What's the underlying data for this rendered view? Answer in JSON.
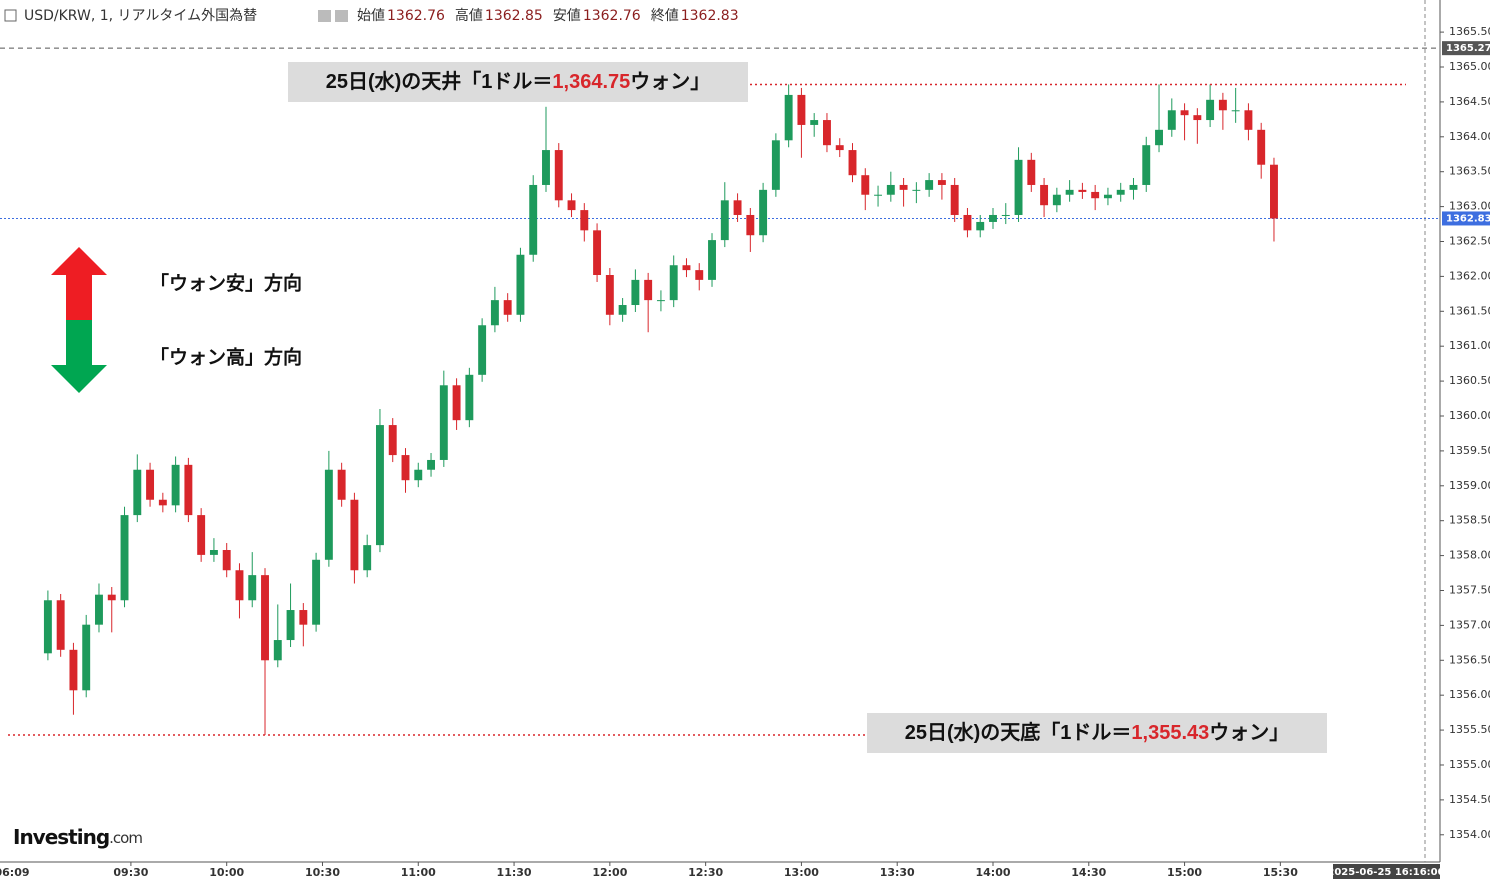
{
  "header": {
    "symbol": "USD/KRW, 1, リアルタイム外国為替",
    "items": [
      {
        "label": "始値",
        "value": 1362.76
      },
      {
        "label": "高値",
        "value": 1362.85
      },
      {
        "label": "安値",
        "value": 1362.76
      },
      {
        "label": "終値",
        "value": 1362.83
      }
    ]
  },
  "side_notes": [
    "「ウォン安」方向",
    "「ウォン高」方向"
  ],
  "logo": {
    "main": "Investing",
    "suffix": ".com"
  },
  "chart_data": {
    "type": "candlestick",
    "up_color": "#1e9a5c",
    "down_color": "#d8262b",
    "x": [
      "09:04",
      "09:08",
      "09:12",
      "09:16",
      "09:20",
      "09:24",
      "09:28",
      "09:32",
      "09:36",
      "09:40",
      "09:44",
      "09:48",
      "09:52",
      "09:56",
      "10:00",
      "10:04",
      "10:08",
      "10:12",
      "10:16",
      "10:20",
      "10:24",
      "10:28",
      "10:32",
      "10:36",
      "10:40",
      "10:44",
      "10:48",
      "10:52",
      "10:56",
      "11:00",
      "11:04",
      "11:08",
      "11:12",
      "11:16",
      "11:20",
      "11:24",
      "11:28",
      "11:32",
      "11:36",
      "11:40",
      "11:44",
      "11:48",
      "11:52",
      "11:56",
      "12:00",
      "12:04",
      "12:08",
      "12:12",
      "12:16",
      "12:20",
      "12:24",
      "12:28",
      "12:32",
      "12:36",
      "12:40",
      "12:44",
      "12:48",
      "12:52",
      "12:56",
      "13:00",
      "13:04",
      "13:08",
      "13:12",
      "13:16",
      "13:20",
      "13:24",
      "13:28",
      "13:32",
      "13:36",
      "13:40",
      "13:44",
      "13:48",
      "13:52",
      "13:56",
      "14:00",
      "14:04",
      "14:08",
      "14:12",
      "14:16",
      "14:20",
      "14:24",
      "14:28",
      "14:32",
      "14:36",
      "14:40",
      "14:44",
      "14:48",
      "14:52",
      "14:56",
      "15:00",
      "15:04",
      "15:08",
      "15:12",
      "15:16",
      "15:20",
      "15:24",
      "15:28"
    ],
    "open": [
      1356.6,
      1357.36,
      1356.65,
      1356.07,
      1357.01,
      1357.44,
      1357.36,
      1358.58,
      1359.23,
      1358.8,
      1358.72,
      1359.3,
      1358.58,
      1358.01,
      1358.08,
      1357.79,
      1357.36,
      1357.72,
      1356.5,
      1356.79,
      1357.22,
      1357.01,
      1357.94,
      1359.23,
      1358.8,
      1357.79,
      1358.15,
      1359.87,
      1359.44,
      1359.08,
      1359.23,
      1359.37,
      1360.44,
      1359.94,
      1360.59,
      1361.3,
      1361.66,
      1361.45,
      1362.31,
      1363.31,
      1363.81,
      1363.09,
      1362.95,
      1362.66,
      1362.02,
      1361.45,
      1361.59,
      1361.95,
      1361.66,
      1361.66,
      1362.16,
      1362.09,
      1361.95,
      1362.52,
      1363.09,
      1362.88,
      1362.59,
      1363.24,
      1363.95,
      1364.6,
      1364.17,
      1364.24,
      1363.88,
      1363.81,
      1363.45,
      1363.17,
      1363.17,
      1363.31,
      1363.24,
      1363.24,
      1363.38,
      1363.31,
      1362.88,
      1362.66,
      1362.78,
      1362.88,
      1362.88,
      1363.67,
      1363.31,
      1363.02,
      1363.17,
      1363.24,
      1363.21,
      1363.12,
      1363.17,
      1363.24,
      1363.31,
      1363.88,
      1364.1,
      1364.38,
      1364.31,
      1364.24,
      1364.53,
      1364.38,
      1364.38,
      1364.1,
      1363.6
    ],
    "high": [
      1357.5,
      1357.45,
      1356.75,
      1357.15,
      1357.6,
      1357.55,
      1358.7,
      1359.45,
      1359.33,
      1358.9,
      1359.42,
      1359.4,
      1358.68,
      1358.25,
      1358.18,
      1357.89,
      1358.05,
      1357.82,
      1357.3,
      1357.6,
      1357.32,
      1358.04,
      1359.5,
      1359.33,
      1358.9,
      1358.3,
      1360.1,
      1359.97,
      1359.54,
      1359.33,
      1359.47,
      1360.65,
      1360.54,
      1360.69,
      1361.4,
      1361.85,
      1361.76,
      1362.41,
      1363.45,
      1364.43,
      1363.91,
      1363.19,
      1363.05,
      1362.76,
      1362.12,
      1361.69,
      1362.1,
      1362.05,
      1361.8,
      1362.3,
      1362.26,
      1362.19,
      1362.62,
      1363.35,
      1363.19,
      1362.98,
      1363.34,
      1364.05,
      1364.75,
      1364.7,
      1364.34,
      1364.34,
      1363.98,
      1363.91,
      1363.55,
      1363.3,
      1363.5,
      1363.41,
      1363.35,
      1363.48,
      1363.48,
      1363.41,
      1362.98,
      1362.88,
      1362.98,
      1363.05,
      1363.85,
      1363.77,
      1363.41,
      1363.27,
      1363.38,
      1363.34,
      1363.31,
      1363.27,
      1363.34,
      1363.41,
      1364.0,
      1364.75,
      1364.55,
      1364.48,
      1364.41,
      1364.75,
      1364.63,
      1364.7,
      1364.48,
      1364.2,
      1363.7
    ],
    "low": [
      1356.5,
      1356.55,
      1355.72,
      1355.97,
      1356.9,
      1356.9,
      1357.26,
      1358.48,
      1358.7,
      1358.62,
      1358.62,
      1358.48,
      1357.91,
      1357.91,
      1357.69,
      1357.1,
      1357.26,
      1355.43,
      1356.4,
      1356.69,
      1356.7,
      1356.91,
      1357.84,
      1358.7,
      1357.6,
      1357.69,
      1358.05,
      1359.34,
      1358.9,
      1358.98,
      1359.13,
      1359.27,
      1359.8,
      1359.84,
      1360.49,
      1361.2,
      1361.35,
      1361.35,
      1362.21,
      1363.21,
      1362.99,
      1362.85,
      1362.5,
      1361.92,
      1361.3,
      1361.35,
      1361.49,
      1361.2,
      1361.5,
      1361.56,
      1361.99,
      1361.8,
      1361.85,
      1362.42,
      1362.78,
      1362.35,
      1362.49,
      1363.14,
      1363.85,
      1363.7,
      1364.0,
      1363.78,
      1363.71,
      1363.35,
      1362.95,
      1363.0,
      1363.07,
      1363.0,
      1363.05,
      1363.14,
      1363.1,
      1362.78,
      1362.56,
      1362.56,
      1362.68,
      1362.75,
      1362.78,
      1363.21,
      1362.85,
      1362.92,
      1363.07,
      1363.11,
      1362.95,
      1363.02,
      1363.07,
      1363.1,
      1363.21,
      1363.78,
      1364.0,
      1363.95,
      1363.9,
      1364.14,
      1364.1,
      1364.2,
      1363.95,
      1363.4,
      1362.5
    ],
    "close": [
      1357.36,
      1356.65,
      1356.07,
      1357.01,
      1357.44,
      1357.36,
      1358.58,
      1359.23,
      1358.8,
      1358.72,
      1359.3,
      1358.58,
      1358.01,
      1358.08,
      1357.79,
      1357.36,
      1357.72,
      1356.5,
      1356.79,
      1357.22,
      1357.01,
      1357.94,
      1359.23,
      1358.8,
      1357.79,
      1358.15,
      1359.87,
      1359.44,
      1359.08,
      1359.23,
      1359.37,
      1360.44,
      1359.94,
      1360.59,
      1361.3,
      1361.66,
      1361.45,
      1362.31,
      1363.31,
      1363.81,
      1363.09,
      1362.95,
      1362.66,
      1362.02,
      1361.45,
      1361.59,
      1361.95,
      1361.66,
      1361.66,
      1362.16,
      1362.09,
      1361.95,
      1362.52,
      1363.09,
      1362.88,
      1362.59,
      1363.24,
      1363.95,
      1364.6,
      1364.17,
      1364.24,
      1363.88,
      1363.81,
      1363.45,
      1363.17,
      1363.17,
      1363.31,
      1363.24,
      1363.24,
      1363.38,
      1363.31,
      1362.88,
      1362.66,
      1362.78,
      1362.88,
      1362.88,
      1363.67,
      1363.31,
      1363.02,
      1363.17,
      1363.24,
      1363.21,
      1363.12,
      1363.17,
      1363.24,
      1363.31,
      1363.88,
      1364.1,
      1364.38,
      1364.31,
      1364.24,
      1364.53,
      1364.38,
      1364.38,
      1364.1,
      1363.6,
      1362.83
    ],
    "xlim": [
      "08:49",
      "16:20"
    ],
    "xticks": [
      "09:30",
      "10:00",
      "10:30",
      "11:00",
      "11:30",
      "12:00",
      "12:30",
      "13:00",
      "13:30",
      "14:00",
      "14:30",
      "15:00",
      "15:30"
    ],
    "x_edge_label": "06:09",
    "cursor_time_label": "2025-06-25 16:16:00",
    "ylim": [
      1353.61,
      1365.96
    ],
    "yticks": [
      {
        "value": 1354,
        "label": "1354.00"
      },
      {
        "value": 1354.5,
        "label": "1354.50"
      },
      {
        "value": 1355,
        "label": "1355.00"
      },
      {
        "value": 1355.5,
        "label": "1355.50"
      },
      {
        "value": 1356,
        "label": "1356.00"
      },
      {
        "value": 1356.5,
        "label": "1356.50"
      },
      {
        "value": 1357,
        "label": "1357.00"
      },
      {
        "value": 1357.5,
        "label": "1357.50"
      },
      {
        "value": 1358,
        "label": "1358.00"
      },
      {
        "value": 1358.5,
        "label": "1358.50"
      },
      {
        "value": 1359,
        "label": "1359.00"
      },
      {
        "value": 1359.5,
        "label": "1359.50"
      },
      {
        "value": 1360,
        "label": "1360.00"
      },
      {
        "value": 1360.5,
        "label": "1360.50"
      },
      {
        "value": 1361,
        "label": "1361.00"
      },
      {
        "value": 1361.5,
        "label": "1361.50"
      },
      {
        "value": 1362,
        "label": "1362.00"
      },
      {
        "value": 1362.5,
        "label": "1362.50"
      },
      {
        "value": 1363,
        "label": "1363.00"
      },
      {
        "value": 1363.5,
        "label": "1363.50"
      },
      {
        "value": 1364,
        "label": "1364.00"
      },
      {
        "value": 1364.5,
        "label": "1364.50"
      },
      {
        "value": 1365,
        "label": "1365.00"
      },
      {
        "value": 1365.5,
        "label": "1365.50"
      }
    ],
    "price_lines": [
      {
        "value": 1365.27,
        "color": "#555555"
      },
      {
        "value": 1362.83,
        "color": "#3d6ee0"
      }
    ],
    "annotations": [
      {
        "prefix": "25日(水)の天井「1ドル＝",
        "value": 1364.75,
        "value_label": "1,364.75",
        "suffix": "ウォン」",
        "line_color": "#d8262b"
      },
      {
        "prefix": "25日(水)の天底「1ドル＝",
        "value": 1355.43,
        "value_label": "1,355.43",
        "suffix": "ウォン」",
        "line_color": "#d8262b"
      }
    ]
  }
}
